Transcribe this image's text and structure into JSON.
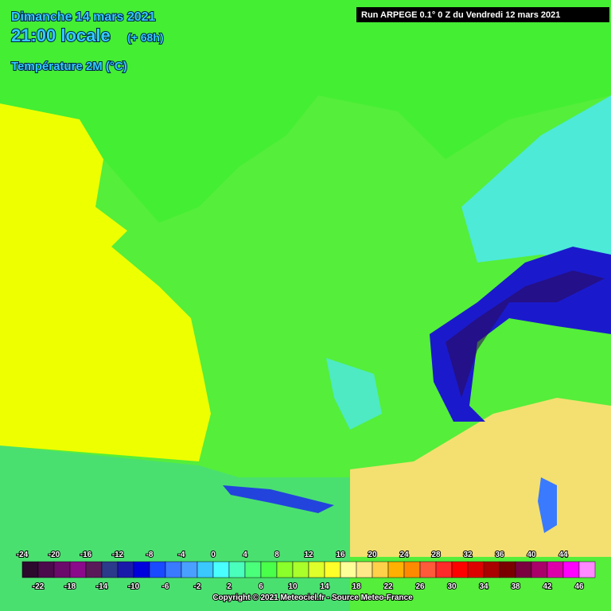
{
  "header": {
    "date": "Dimanche 14 mars 2021",
    "time": "21:00 locale",
    "lead": "(+ 68h)",
    "parameter": "Température 2M (°C)",
    "run": "Run ARPEGE 0.1° 0 Z du Vendredi 12 mars 2021"
  },
  "legend": {
    "labels_top": [
      -24,
      -20,
      -16,
      -12,
      -8,
      -4,
      0,
      4,
      8,
      12,
      16,
      20,
      24,
      28,
      32,
      36,
      40,
      44
    ],
    "labels_bottom": [
      -22,
      -18,
      -14,
      -10,
      -6,
      -2,
      2,
      6,
      10,
      14,
      18,
      22,
      26,
      30,
      34,
      38,
      42,
      46
    ],
    "colors": [
      "#2b0a2e",
      "#4b0a4b",
      "#6b0a6b",
      "#8b0a8b",
      "#5a1a5a",
      "#2b3a8a",
      "#1a1aaa",
      "#0000dd",
      "#1a4aff",
      "#3a7aff",
      "#4aa0ff",
      "#3ac8ff",
      "#4affff",
      "#4affbb",
      "#4aff7a",
      "#4aff4a",
      "#8aff2a",
      "#aaff2a",
      "#ddff2a",
      "#ffff2a",
      "#ffff9a",
      "#ffe88a",
      "#ffd04a",
      "#ffb000",
      "#ff8a00",
      "#ff5a3a",
      "#ff2a2a",
      "#ff0000",
      "#dd0000",
      "#aa0000",
      "#7a0000",
      "#7a0040",
      "#aa006a",
      "#dd00aa",
      "#ff00ff",
      "#ff8aff"
    ]
  },
  "footer": {
    "copyright": "Copyright © 2021 Meteociel.fr - Source Meteo-France"
  }
}
